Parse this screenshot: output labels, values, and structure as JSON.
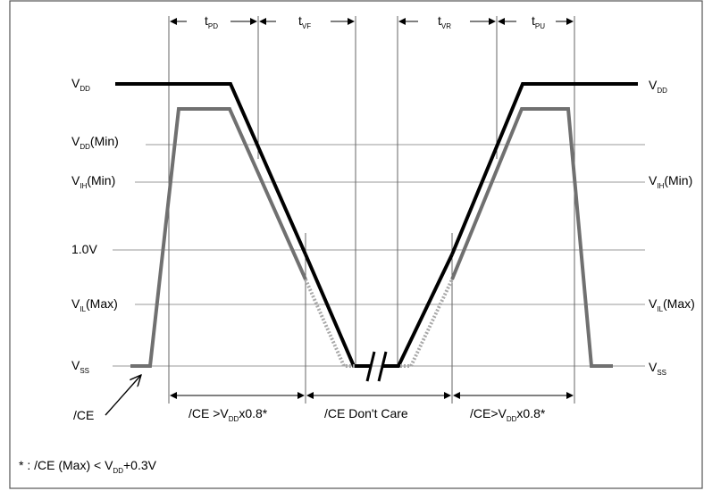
{
  "timing": {
    "t_pd": {
      "base": "t",
      "sub": "PD"
    },
    "t_vf": {
      "base": "t",
      "sub": "VF"
    },
    "t_vr": {
      "base": "t",
      "sub": "VR"
    },
    "t_pu": {
      "base": "t",
      "sub": "PU"
    }
  },
  "levels": {
    "vdd_left": {
      "base": "V",
      "sub": "DD",
      "tail": ""
    },
    "vdd_right": {
      "base": "V",
      "sub": "DD",
      "tail": ""
    },
    "vdd_min": {
      "base": "V",
      "sub": "DD",
      "tail": "(Min)"
    },
    "vih_min_left": {
      "base": "V",
      "sub": "IH",
      "tail": "(Min)"
    },
    "vih_min_right": {
      "base": "V",
      "sub": "IH",
      "tail": "(Min)"
    },
    "one_volt": "1.0V",
    "vil_max_left": {
      "base": "V",
      "sub": "IL",
      "tail": "(Max)"
    },
    "vil_max_right": {
      "base": "V",
      "sub": "IL",
      "tail": "(Max)"
    },
    "vss_left": {
      "base": "V",
      "sub": "SS",
      "tail": ""
    },
    "vss_right": {
      "base": "V",
      "sub": "SS",
      "tail": ""
    }
  },
  "signal_label": "/CE",
  "regions": {
    "left": {
      "pre": "/CE >V",
      "sub": "DD",
      "post": "x0.8*"
    },
    "middle": "/CE Don't Care",
    "right": {
      "pre": "/CE>V",
      "sub": "DD",
      "post": "x0.8*"
    }
  },
  "footnote": {
    "pre": "* : /CE (Max) < V",
    "sub": "DD",
    "post": "+0.3V"
  },
  "colors": {
    "vdd_trace": "#000000",
    "ce_trace": "#707070",
    "grid": "#9a9a9a",
    "border": "#555555"
  }
}
